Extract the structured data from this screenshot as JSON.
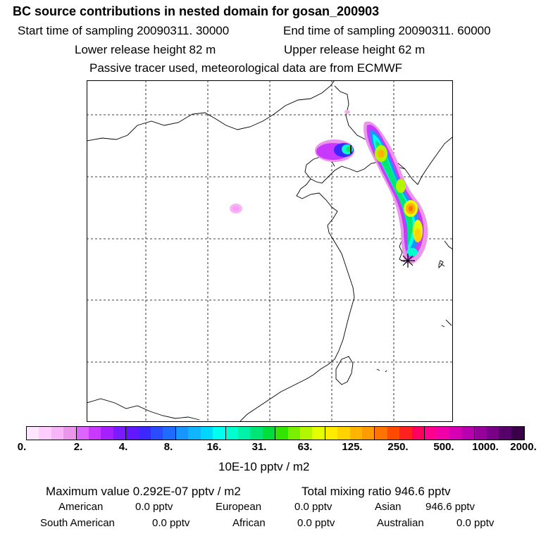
{
  "header": {
    "title": "BC  source contributions in nested domain for gosan_200903",
    "start_label": "Start time of sampling 20090311. 30000",
    "end_label": "End time of sampling 20090311. 60000",
    "lower_label": "Lower release height   82 m",
    "upper_label": "Upper release height   62 m",
    "tracer_note": "Passive tracer used, meteorological data are from ECMWF"
  },
  "map": {
    "receptor_marker": "star-marker",
    "plume_levels": [
      "pink-low",
      "magenta",
      "blue",
      "cyan",
      "green",
      "yellow",
      "orange",
      "red"
    ]
  },
  "colorbar": {
    "labels": [
      "0.",
      "2.",
      "4.",
      "8.",
      "16.",
      "31.",
      "63.",
      "125.",
      "250.",
      "500.",
      "1000.",
      "2000."
    ],
    "units": "10E-10 pptv / m2",
    "colors": [
      "#ffe6ff",
      "#ffcdff",
      "#f7b5f7",
      "#eb96eb",
      "#dc64ff",
      "#c838ff",
      "#a61fff",
      "#7a1aff",
      "#6218ff",
      "#3c28ff",
      "#2a4cff",
      "#1e6cff",
      "#1896ff",
      "#10b4ff",
      "#00d7ff",
      "#00ffee",
      "#00ffd0",
      "#00f2a8",
      "#00e676",
      "#00de3c",
      "#32e400",
      "#78f000",
      "#b4f500",
      "#e6ff00",
      "#ffeb00",
      "#ffd200",
      "#ffb400",
      "#ff9a00",
      "#ff7400",
      "#ff4a00",
      "#ff2020",
      "#ff0060",
      "#ff0090",
      "#f000a8",
      "#d800b4",
      "#b800b0",
      "#96009c",
      "#780088",
      "#58006a",
      "#3a004a"
    ]
  },
  "stats": {
    "max_value": "Maximum value  0.292E-07 pptv / m2",
    "total_mixing": "Total mixing ratio      946.6 pptv",
    "american_label": "American",
    "american_value": "0.0 pptv",
    "european_label": "European",
    "european_value": "0.0 pptv",
    "asian_label": "Asian",
    "asian_value": "946.6 pptv",
    "south_american_label": "South American",
    "south_american_value": "0.0 pptv",
    "african_label": "African",
    "african_value": "0.0 pptv",
    "australian_label": "Australian",
    "australian_value": "0.0 pptv"
  }
}
